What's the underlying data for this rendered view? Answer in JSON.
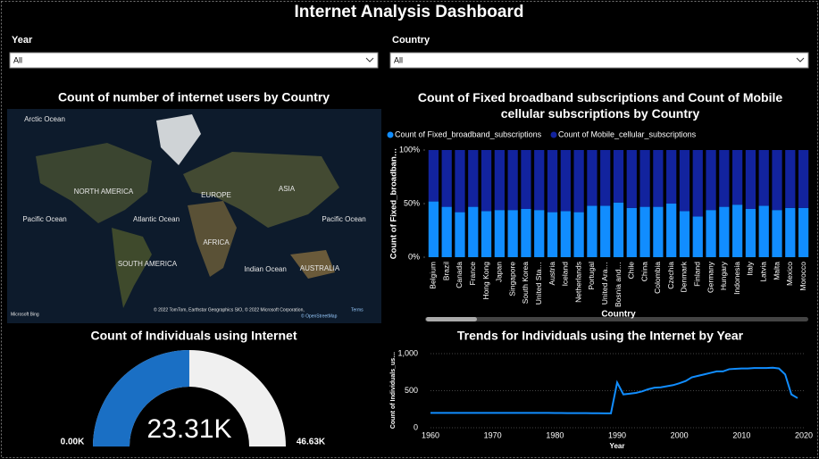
{
  "header": {
    "title": "Internet Analysis Dashboard"
  },
  "slicers": [
    {
      "label": "Year",
      "value": "All"
    },
    {
      "label": "Country",
      "value": "All"
    }
  ],
  "map": {
    "title": "Count of number of internet users by Country",
    "labels": [
      "Arctic Ocean",
      "NORTH AMERICA",
      "EUROPE",
      "ASIA",
      "Pacific Ocean",
      "Atlantic Ocean",
      "AFRICA",
      "Pacific Ocean",
      "Indian Ocean",
      "SOUTH AMERICA",
      "AUSTRALIA"
    ],
    "attribution": "© 2022 TomTom, Earthstar Geographics SIO, © 2022 Microsoft Corporation,",
    "terms": "Terms",
    "osm": "© OpenStreetMap",
    "provider": "Microsoft Bing"
  },
  "chart_data": [
    {
      "type": "bar",
      "stacked": true,
      "title": "Count of Fixed broadband subscriptions and Count of Mobile cellular subscriptions by Country",
      "x_label": "Country",
      "y_label": "Count of Fixed_broadban…",
      "categories": [
        "Belgium",
        "Brazil",
        "Canada",
        "France",
        "Hong Kong",
        "Japan",
        "Singapore",
        "South Korea",
        "United Sta…",
        "Austria",
        "Iceland",
        "Netherlands",
        "Portugal",
        "United Ara…",
        "Bosnia and…",
        "Chile",
        "China",
        "Colombia",
        "Czechia",
        "Denmark",
        "Finland",
        "Germany",
        "Hungary",
        "Indonesia",
        "Italy",
        "Latvia",
        "Malta",
        "Mexico",
        "Morocco"
      ],
      "series": [
        {
          "name": "Count of Fixed_broadband_subscriptions",
          "color": "#118dff",
          "values": [
            52,
            47,
            42,
            47,
            43,
            44,
            44,
            45,
            44,
            42,
            43,
            42,
            48,
            48,
            51,
            46,
            47,
            47,
            50,
            43,
            38,
            44,
            47,
            49,
            45,
            48,
            44,
            46,
            46
          ]
        },
        {
          "name": "Count of Mobile_cellular_subscriptions",
          "color": "#12239e",
          "values": [
            48,
            53,
            58,
            53,
            57,
            56,
            56,
            55,
            56,
            58,
            57,
            58,
            52,
            52,
            49,
            54,
            53,
            53,
            50,
            57,
            62,
            56,
            53,
            51,
            55,
            52,
            56,
            54,
            54
          ]
        }
      ],
      "ylim": [
        0,
        100
      ],
      "yticks": [
        {
          "value": 0,
          "label": "0%"
        },
        {
          "value": 50,
          "label": "50%"
        },
        {
          "value": 100,
          "label": "100%"
        }
      ],
      "legend": "top-left"
    },
    {
      "type": "gauge",
      "title": "Count of Individuals using Internet",
      "value": 23310,
      "value_label": "23.31K",
      "min": 0,
      "min_label": "0.00K",
      "max": 46630,
      "max_label": "46.63K",
      "color": "#1a6fc4",
      "track_color": "#f0f0f0"
    },
    {
      "type": "line",
      "title": "Trends for Individuals using the Internet by Year",
      "x_label": "Year",
      "y_label": "Count of Individuals_us…",
      "color": "#118dff",
      "x": [
        1960,
        1961,
        1962,
        1963,
        1964,
        1965,
        1966,
        1967,
        1968,
        1969,
        1970,
        1971,
        1972,
        1973,
        1974,
        1975,
        1976,
        1977,
        1978,
        1979,
        1980,
        1981,
        1982,
        1983,
        1984,
        1985,
        1986,
        1987,
        1988,
        1989,
        1990,
        1991,
        1992,
        1993,
        1994,
        1995,
        1996,
        1997,
        1998,
        1999,
        2000,
        2001,
        2002,
        2003,
        2004,
        2005,
        2006,
        2007,
        2008,
        2009,
        2010,
        2011,
        2012,
        2013,
        2014,
        2015,
        2016,
        2017,
        2018,
        2019
      ],
      "values": [
        200,
        200,
        200,
        200,
        200,
        200,
        200,
        200,
        200,
        200,
        200,
        200,
        200,
        200,
        200,
        200,
        200,
        200,
        200,
        200,
        199,
        199,
        198,
        198,
        197,
        197,
        196,
        196,
        195,
        195,
        610,
        450,
        460,
        470,
        490,
        520,
        540,
        545,
        560,
        575,
        600,
        630,
        680,
        700,
        720,
        740,
        760,
        760,
        790,
        795,
        800,
        800,
        805,
        805,
        805,
        810,
        800,
        720,
        450,
        400
      ],
      "xlim": [
        1960,
        2020
      ],
      "xticks": [
        1960,
        1970,
        1980,
        1990,
        2000,
        2010,
        2020
      ],
      "ylim": [
        0,
        1000
      ],
      "yticks": [
        0,
        500,
        {
          "value": 1000,
          "label": "1,000"
        }
      ],
      "grid": true
    }
  ]
}
